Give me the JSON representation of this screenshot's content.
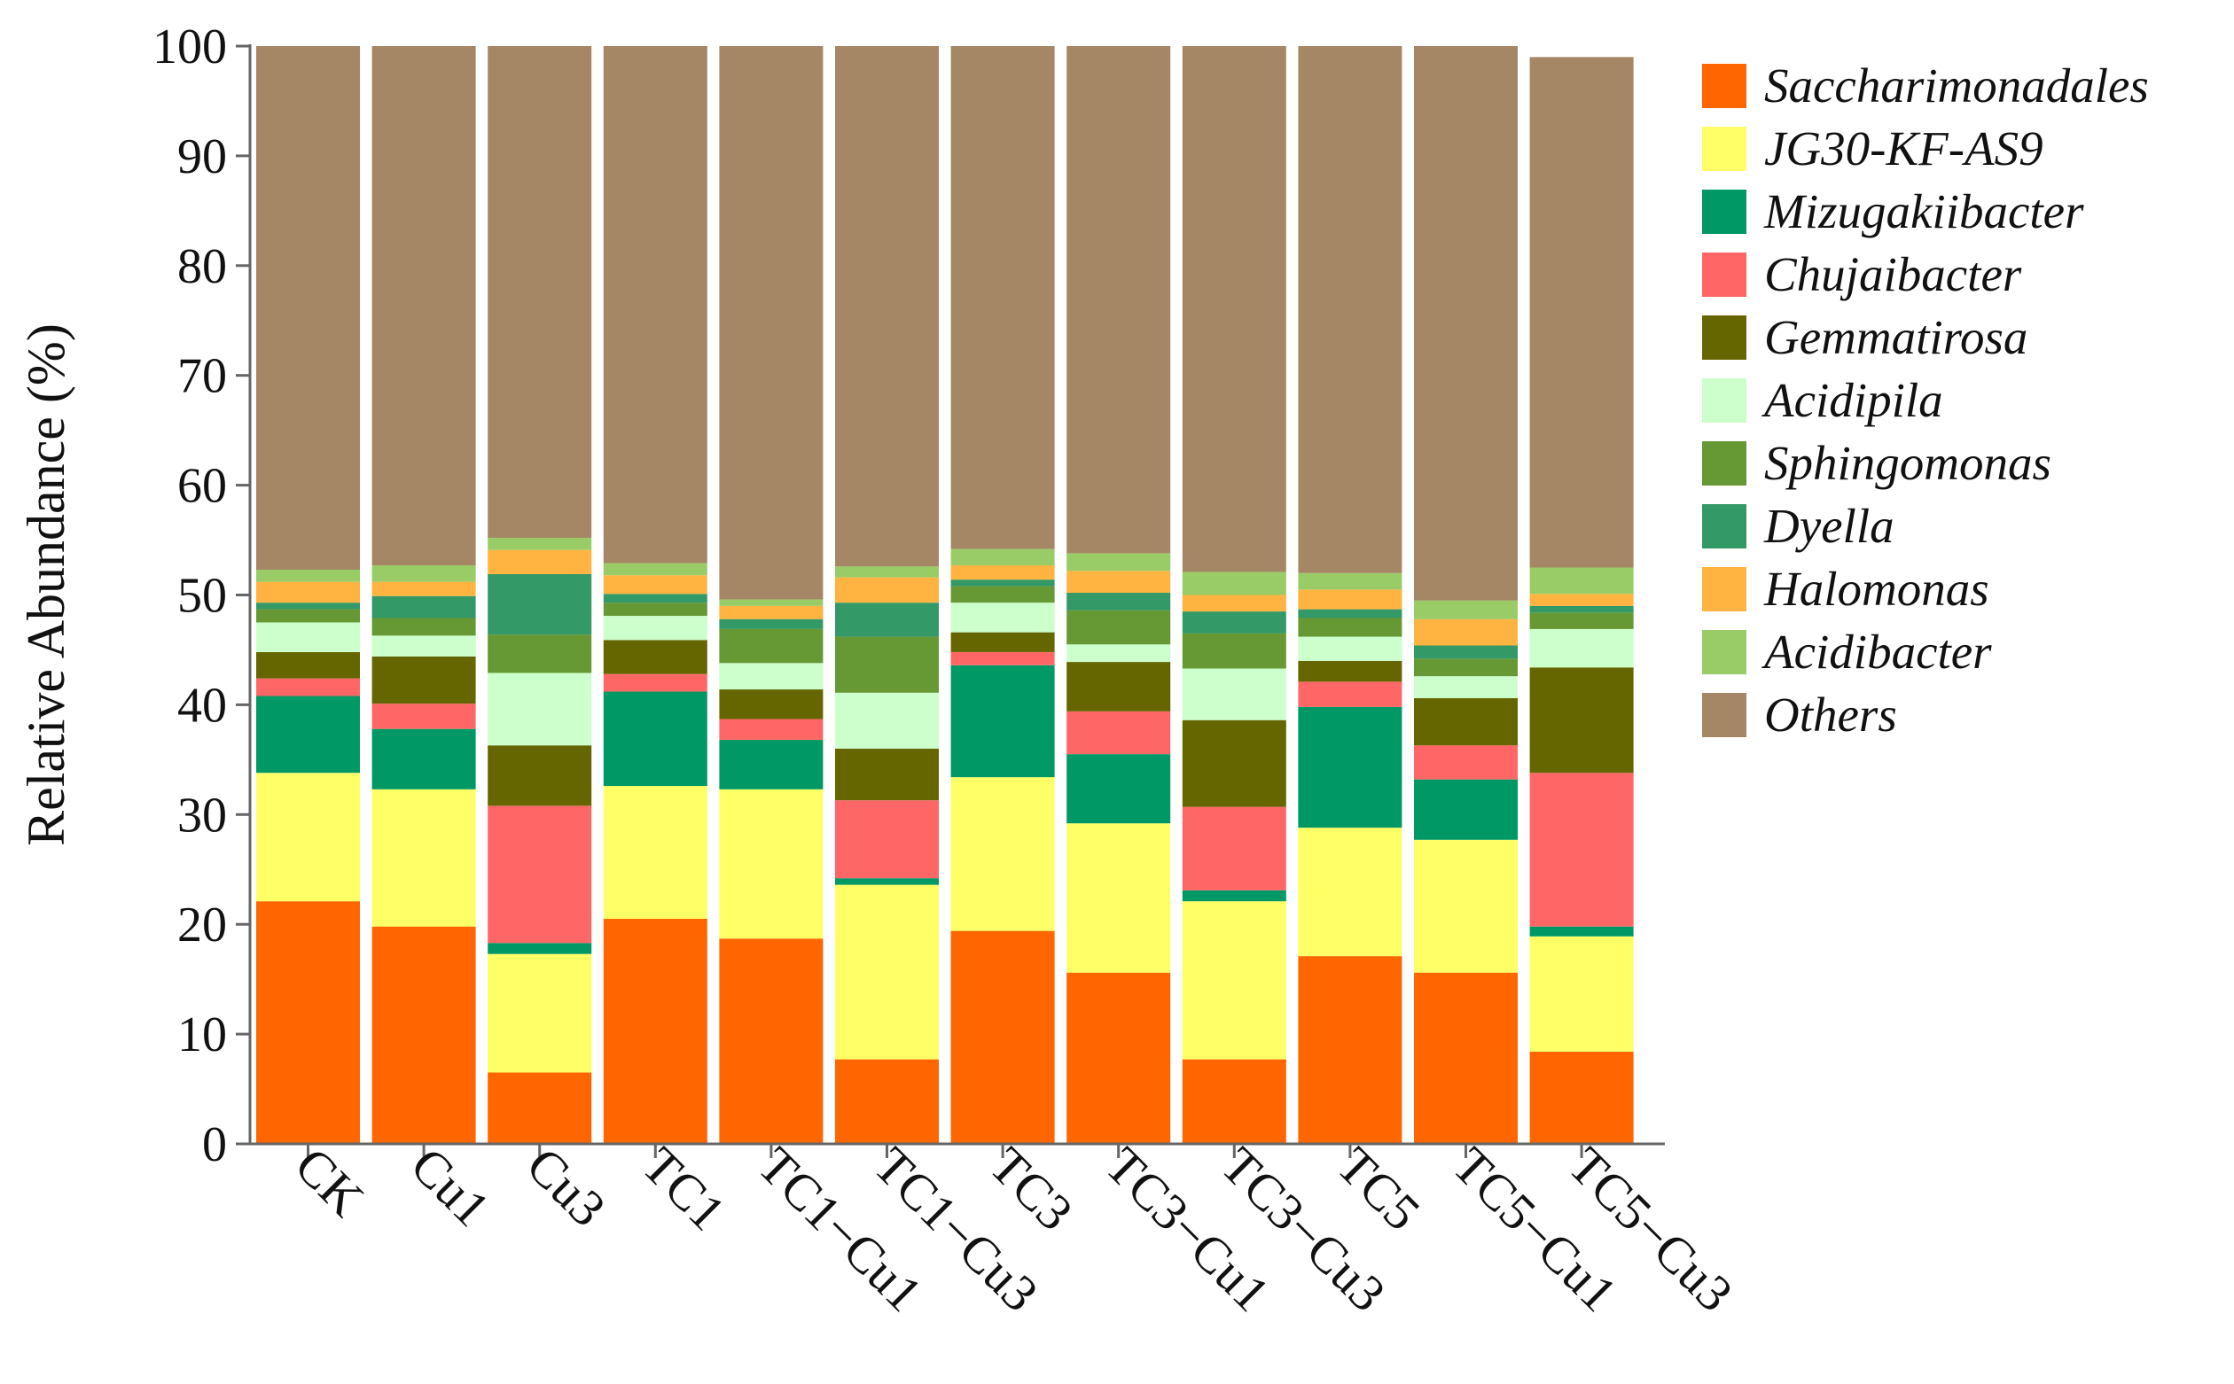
{
  "chart_data": {
    "type": "stacked-bar",
    "title": "",
    "xlabel": "",
    "ylabel": "Relative Abundance (%)",
    "ylim": [
      0,
      100
    ],
    "yticks": [
      "0",
      "10",
      "20",
      "30",
      "40",
      "50",
      "60",
      "70",
      "80",
      "90",
      "100"
    ],
    "grid": false,
    "legend_position": "right",
    "categories": [
      "CK",
      "Cu1",
      "Cu3",
      "TC1",
      "TC1−Cu1",
      "TC1−Cu3",
      "TC3",
      "TC3−Cu1",
      "TC3−Cu3",
      "TC5",
      "TC5−Cu1",
      "TC5−Cu3"
    ],
    "series": [
      {
        "name": "Saccharimonadales",
        "color": "#ff6600",
        "values": [
          22.1,
          19.8,
          6.5,
          20.5,
          18.7,
          7.7,
          19.4,
          15.6,
          7.7,
          17.1,
          15.6,
          8.4
        ]
      },
      {
        "name": "JG30-KF-AS9",
        "color": "#ffff66",
        "values": [
          11.7,
          12.5,
          10.8,
          12.1,
          13.6,
          15.9,
          14.0,
          13.6,
          14.4,
          11.7,
          12.1,
          10.5
        ]
      },
      {
        "name": "Mizugakiibacter",
        "color": "#009966",
        "values": [
          7.0,
          5.5,
          1.0,
          8.6,
          4.5,
          0.6,
          10.2,
          6.3,
          1.0,
          11.0,
          5.5,
          0.9
        ]
      },
      {
        "name": "Chujaibacter",
        "color": "#ff6666",
        "values": [
          1.6,
          2.3,
          12.5,
          1.6,
          1.9,
          7.1,
          1.2,
          3.9,
          7.6,
          2.3,
          3.1,
          14.0
        ]
      },
      {
        "name": "Gemmatirosa",
        "color": "#666600",
        "values": [
          2.4,
          4.3,
          5.5,
          3.1,
          2.7,
          4.7,
          1.8,
          4.5,
          7.9,
          1.9,
          4.3,
          9.6
        ]
      },
      {
        "name": "Acidipila",
        "color": "#ccffcc",
        "values": [
          2.7,
          1.9,
          6.6,
          2.2,
          2.4,
          5.1,
          2.7,
          1.6,
          4.7,
          2.2,
          2.0,
          3.5
        ]
      },
      {
        "name": "Sphingomonas",
        "color": "#669933",
        "values": [
          1.2,
          1.6,
          3.5,
          1.2,
          3.1,
          5.1,
          1.5,
          3.1,
          3.2,
          1.7,
          1.6,
          1.5
        ]
      },
      {
        "name": "Dyella",
        "color": "#339966",
        "values": [
          0.6,
          2.0,
          5.5,
          0.8,
          0.9,
          3.1,
          0.6,
          1.6,
          2.0,
          0.8,
          1.2,
          0.6
        ]
      },
      {
        "name": "Halomonas",
        "color": "#ffb340",
        "values": [
          1.9,
          1.3,
          2.2,
          1.7,
          1.2,
          2.3,
          1.3,
          2.0,
          1.5,
          1.8,
          2.4,
          1.1
        ]
      },
      {
        "name": "Acidibacter",
        "color": "#99cc66",
        "values": [
          1.1,
          1.5,
          1.1,
          1.1,
          0.6,
          1.0,
          1.5,
          1.6,
          2.1,
          1.5,
          1.7,
          2.4
        ]
      },
      {
        "name": "Others",
        "color": "#a58765",
        "values": [
          47.7,
          47.3,
          44.8,
          47.1,
          50.4,
          47.4,
          45.8,
          46.2,
          47.9,
          48.0,
          50.5,
          46.5
        ]
      }
    ]
  }
}
